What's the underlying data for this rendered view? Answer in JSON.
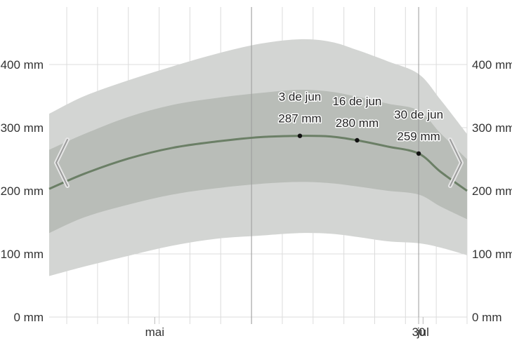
{
  "chart_data": {
    "type": "area",
    "y_unit": "mm",
    "ylim": [
      0,
      400
    ],
    "y_ticks": [
      0,
      100,
      200,
      300,
      400
    ],
    "y_tick_labels": [
      "0 mm",
      "100 mm",
      "200 mm",
      "300 mm",
      "400 mm"
    ],
    "x_range": [
      "2024-04-07",
      "2024-07-11"
    ],
    "x_tick_labels": [
      {
        "date": "2024-05-01",
        "label": "mai"
      },
      {
        "date": "2024-06-30",
        "label": "30"
      },
      {
        "date": "2024-07-01",
        "label": "jul"
      }
    ],
    "x": [
      "2024-04-07",
      "2024-04-15",
      "2024-04-25",
      "2024-05-05",
      "2024-05-15",
      "2024-05-25",
      "2024-06-03",
      "2024-06-10",
      "2024-06-16",
      "2024-06-23",
      "2024-06-30",
      "2024-07-05",
      "2024-07-11"
    ],
    "series": [
      {
        "values": [
          203,
          227,
          251,
          268,
          278,
          285,
          287,
          286,
          280,
          270,
          259,
          230,
          200
        ]
      },
      {
        "values": [
          133,
          158,
          178,
          194,
          204,
          211,
          214,
          212,
          207,
          200,
          194,
          175,
          155
        ]
      },
      {
        "values": [
          265,
          290,
          317,
          336,
          347,
          355,
          360,
          357,
          349,
          338,
          327,
          291,
          250
        ]
      },
      {
        "values": [
          65,
          80,
          97,
          113,
          124,
          129,
          133,
          132,
          127,
          120,
          117,
          110,
          98
        ]
      },
      {
        "values": [
          322,
          350,
          375,
          397,
          417,
          433,
          440,
          436,
          423,
          405,
          385,
          344,
          290
        ]
      }
    ],
    "annotations": [
      {
        "date": "2024-06-03",
        "label_date": "3 de jun",
        "label_value": "287 mm",
        "value": 287
      },
      {
        "date": "2024-06-16",
        "label_date": "16 de jun",
        "label_value": "280 mm",
        "value": 280
      },
      {
        "date": "2024-06-30",
        "label_date": "30 de jun",
        "label_value": "259 mm",
        "value": 259
      }
    ],
    "grid": true,
    "colors": {
      "outer_band": "#d3d5d3",
      "inner_band": "#b9bdb8",
      "line": "#6b7f66",
      "grid": "#dcdcdc",
      "vline": "#9a9a9a"
    }
  },
  "nav": {
    "prev_icon": "chevron-left-icon",
    "next_icon": "chevron-right-icon"
  }
}
